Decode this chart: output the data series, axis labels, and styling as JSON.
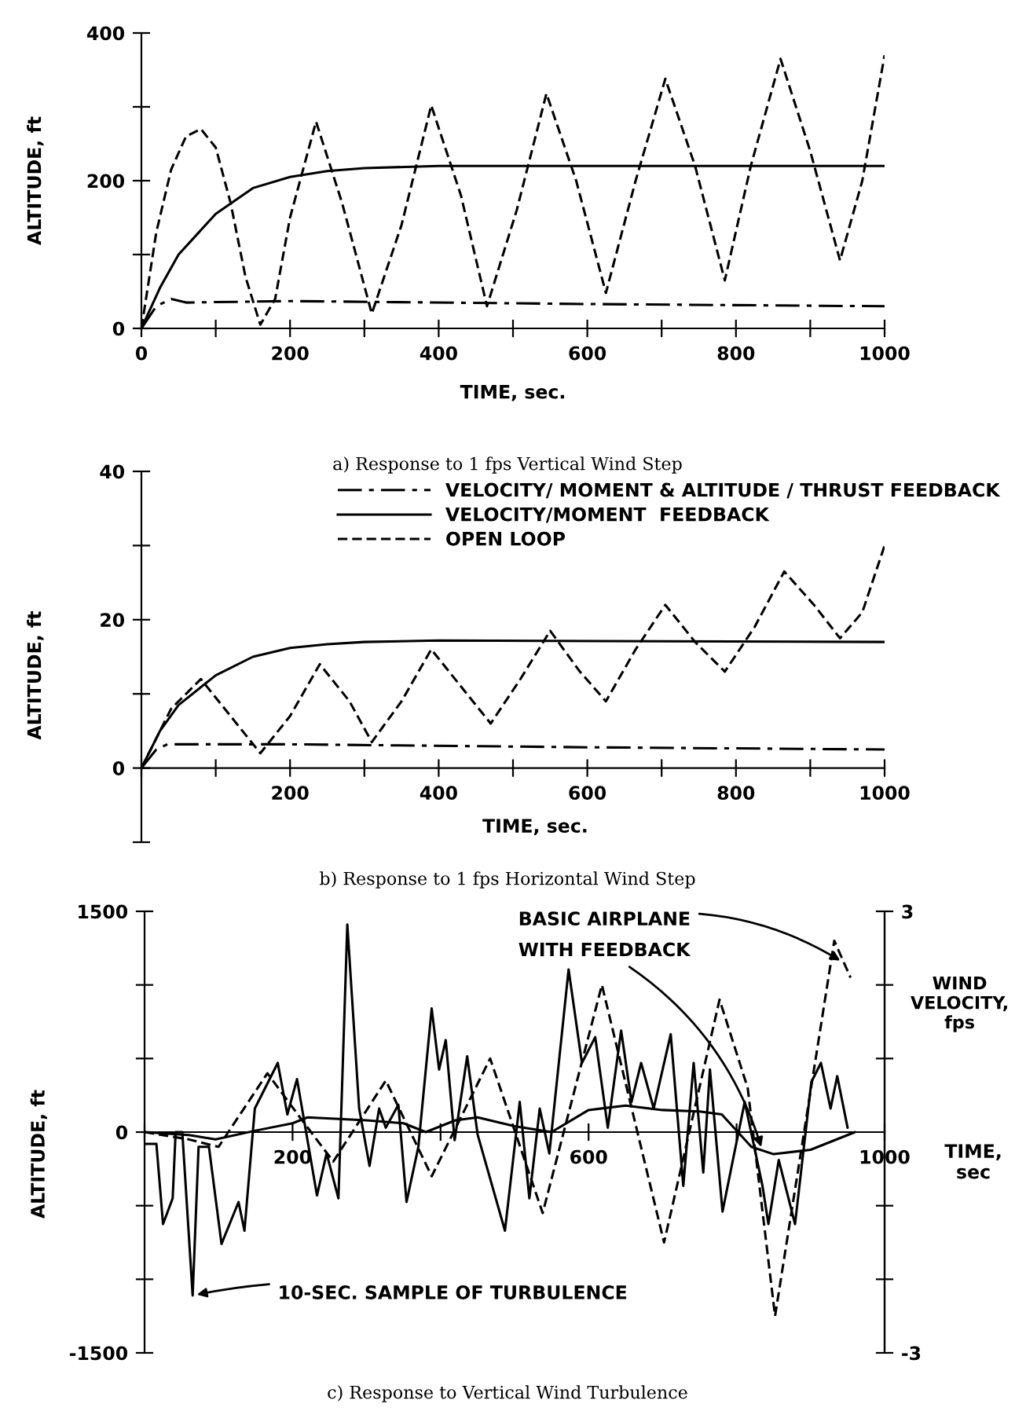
{
  "chart_data": [
    {
      "type": "line",
      "title": "a) Response to 1 fps Vertical Wind Step",
      "xlabel": "TIME, sec.",
      "ylabel": "ALTITUDE, ft",
      "xlim": [
        0,
        1000
      ],
      "ylim": [
        0,
        400
      ],
      "xticks": [
        0,
        {
          "value": 100,
          "label": null
        },
        200,
        {
          "value": 300,
          "label": null
        },
        400,
        {
          "value": 500,
          "label": null
        },
        600,
        {
          "value": 700,
          "label": null
        },
        800,
        {
          "value": 900,
          "label": null
        },
        1000
      ],
      "yticks": [
        0,
        {
          "value": 100,
          "label": null
        },
        200,
        {
          "value": 300,
          "label": null
        },
        400
      ],
      "grid": false,
      "legend": false,
      "series": [
        {
          "color": "#000000",
          "line_style": "dashdot",
          "x": [
            0,
            20,
            40,
            60,
            200,
            600,
            1000
          ],
          "values": [
            0,
            30,
            40,
            35,
            37,
            33,
            30
          ]
        },
        {
          "color": "#000000",
          "line_style": "solid",
          "x": [
            0,
            25,
            50,
            100,
            150,
            200,
            250,
            300,
            400,
            600,
            1000
          ],
          "values": [
            0,
            55,
            100,
            155,
            190,
            205,
            213,
            217,
            220,
            220,
            220
          ]
        },
        {
          "color": "#000000",
          "line_style": "dashed",
          "x": [
            0,
            20,
            40,
            60,
            80,
            100,
            120,
            140,
            160,
            180,
            200,
            235,
            270,
            310,
            350,
            390,
            430,
            465,
            505,
            545,
            585,
            625,
            665,
            705,
            745,
            785,
            820,
            860,
            900,
            940,
            970,
            1000
          ],
          "values": [
            0,
            130,
            215,
            260,
            270,
            245,
            170,
            70,
            5,
            40,
            150,
            280,
            170,
            20,
            140,
            302,
            180,
            30,
            160,
            318,
            200,
            48,
            200,
            338,
            220,
            65,
            220,
            365,
            240,
            92,
            200,
            370
          ]
        }
      ]
    },
    {
      "type": "line",
      "title": "b) Response to 1 fps Horizontal Wind Step",
      "xlabel": "TIME, sec.",
      "ylabel": "ALTITUDE, ft",
      "xlim": [
        0,
        1000
      ],
      "ylim": [
        -10,
        40
      ],
      "xticks": [
        {
          "value": 0,
          "label": null
        },
        {
          "value": 100,
          "label": null
        },
        200,
        {
          "value": 300,
          "label": null
        },
        400,
        {
          "value": 500,
          "label": null
        },
        600,
        {
          "value": 700,
          "label": null
        },
        800,
        {
          "value": 900,
          "label": null
        },
        1000
      ],
      "yticks": [
        {
          "value": -10,
          "label": null
        },
        0,
        {
          "value": 10,
          "label": null
        },
        20,
        {
          "value": 30,
          "label": null
        },
        40
      ],
      "grid": false,
      "legend": "top right",
      "series": [
        {
          "name": "VELOCITY/ MOMENT & ALTITUDE / THRUST FEEDBACK",
          "color": "#000000",
          "line_style": "dashdot",
          "x": [
            0,
            20,
            35,
            200,
            600,
            1000
          ],
          "values": [
            0,
            2.5,
            3.2,
            3.2,
            2.8,
            2.5
          ]
        },
        {
          "name": "VELOCITY/MOMENT  FEEDBACK",
          "color": "#000000",
          "line_style": "solid",
          "x": [
            0,
            25,
            50,
            100,
            150,
            200,
            250,
            300,
            400,
            1000
          ],
          "values": [
            0,
            5,
            8.5,
            12.5,
            15,
            16.2,
            16.7,
            17,
            17.2,
            17
          ]
        },
        {
          "name": "OPEN LOOP",
          "color": "#000000",
          "line_style": "dashed",
          "x": [
            0,
            40,
            80,
            120,
            160,
            200,
            240,
            280,
            310,
            350,
            390,
            430,
            470,
            510,
            550,
            590,
            625,
            665,
            705,
            745,
            785,
            825,
            865,
            905,
            940,
            970,
            1000
          ],
          "values": [
            0,
            8,
            12,
            7,
            2,
            7,
            14,
            9,
            3.5,
            9,
            16,
            11,
            6,
            12,
            18.5,
            13,
            9,
            16,
            22,
            17,
            13,
            19,
            26.5,
            22,
            17.5,
            21,
            30
          ]
        }
      ]
    },
    {
      "type": "line",
      "title": "c) Response to Vertical Wind Turbulence",
      "xlabel": "TIME,\nsec",
      "ylabel": "ALTITUDE, ft",
      "y2label": "WIND\nVELOCITY,\nfps",
      "xlim": [
        0,
        1000
      ],
      "ylim": [
        -1500,
        1500
      ],
      "y2lim": [
        -3,
        3
      ],
      "xticks": [
        {
          "value": 0,
          "label": null
        },
        200,
        {
          "value": 400,
          "label": null
        },
        600,
        {
          "value": 800,
          "label": null
        },
        1000
      ],
      "yticks": [
        -1500,
        {
          "value": -1000,
          "label": null
        },
        {
          "value": -500,
          "label": null
        },
        0,
        {
          "value": 500,
          "label": null
        },
        {
          "value": 1000,
          "label": null
        },
        1500
      ],
      "y2ticks": [
        -3,
        {
          "value": -2,
          "label": null
        },
        {
          "value": -1,
          "label": null
        },
        {
          "value": 1,
          "label": null
        },
        {
          "value": 2,
          "label": null
        },
        3
      ],
      "grid": false,
      "legend": false,
      "annotations": [
        {
          "text": "10-SEC. SAMPLE OF TURBULENCE",
          "x": 65,
          "y": -1110
        },
        {
          "text": "BASIC AIRPLANE",
          "x": 945,
          "y": 1150
        },
        {
          "text": "WITH FEEDBACK",
          "x": 835,
          "y": -130
        }
      ],
      "series": [
        {
          "color": "#000000",
          "line_style": "dashed",
          "x": [
            0,
            60,
            100,
            166,
            210,
            255,
            326,
            388,
            467,
            538,
            618,
            702,
            777,
            815,
            852,
            932,
            954
          ],
          "values": [
            0,
            -50,
            -100,
            400,
            100,
            -200,
            350,
            -300,
            500,
            -550,
            1000,
            -750,
            900,
            300,
            -1250,
            1300,
            1050
          ]
        },
        {
          "color": "#000000",
          "line_style": "solid",
          "x": [
            0,
            60,
            96,
            150,
            200,
            220,
            300,
            350,
            380,
            420,
            450,
            500,
            550,
            600,
            650,
            700,
            750,
            780,
            820,
            850,
            900,
            950,
            960
          ],
          "values": [
            0,
            -20,
            -50,
            10,
            60,
            100,
            80,
            60,
            0,
            80,
            100,
            40,
            0,
            150,
            180,
            150,
            140,
            120,
            -100,
            -150,
            -120,
            -20,
            0
          ]
        },
        {
          "color": "#000000",
          "line_style": "solid",
          "axis": "y2",
          "x": [
            0,
            16,
            25,
            38,
            42,
            51,
            65,
            73,
            87,
            104,
            127,
            135,
            149,
            180,
            193,
            206,
            233,
            246,
            262,
            274,
            290,
            304,
            317,
            326,
            343,
            354,
            370,
            388,
            398,
            407,
            419,
            436,
            450,
            487,
            507,
            520,
            534,
            547,
            573,
            591,
            609,
            626,
            644,
            658,
            671,
            688,
            711,
            728,
            742,
            755,
            764,
            781,
            795,
            811,
            835,
            843,
            857,
            879,
            901,
            914,
            927,
            936,
            950
          ],
          "values": [
            -0.16,
            -0.16,
            -1.25,
            -0.9,
            0,
            0,
            -2.22,
            -0.2,
            -0.2,
            -1.52,
            -0.95,
            -1.34,
            0.32,
            0.94,
            0.24,
            0.72,
            -0.86,
            -0.29,
            -0.9,
            2.82,
            0.32,
            -0.46,
            0.32,
            0.06,
            0.37,
            -0.95,
            -0.2,
            1.68,
            0.85,
            1.25,
            -0.11,
            1.03,
            -0.03,
            -1.34,
            0.41,
            -0.9,
            0.32,
            -0.29,
            2.21,
            0.94,
            1.29,
            0.06,
            1.38,
            0.41,
            0.94,
            0.32,
            1.33,
            -0.73,
            0.94,
            -0.55,
            0.85,
            -1.08,
            -0.38,
            0.41,
            -0.73,
            -1.25,
            -0.38,
            -1.25,
            0.68,
            0.94,
            0.32,
            0.76,
            0.06
          ]
        }
      ]
    }
  ]
}
